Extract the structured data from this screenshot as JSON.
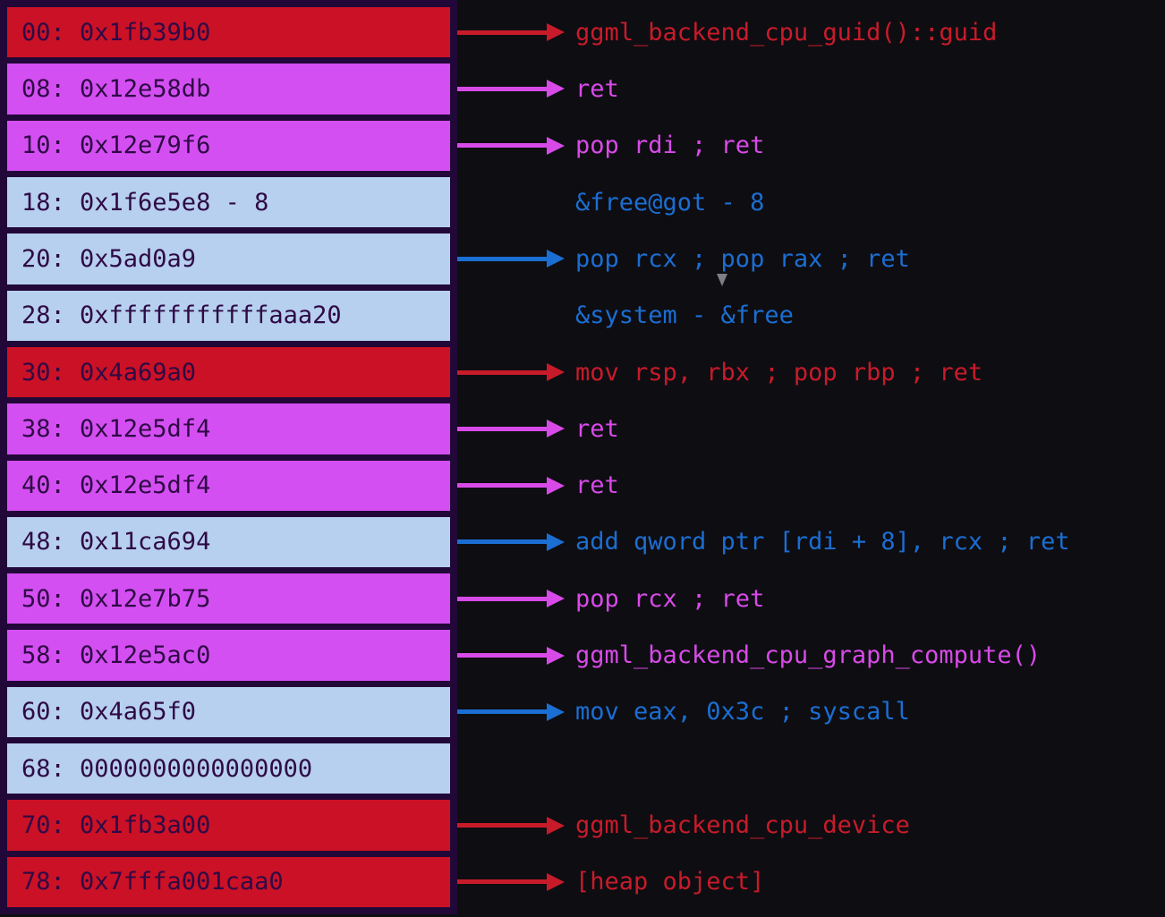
{
  "colors": {
    "background": "#0e0d12",
    "frame": "#220838",
    "cell_text": "#2e0a45",
    "red": "#cb1126",
    "magenta": "#d44ff2",
    "blue_fill": "#b7d0f0",
    "red_label": "#c81b2a",
    "magenta_label": "#d84ae8",
    "blue_label": "#1b6ed2",
    "cursor": "#7e7e86"
  },
  "cursor_icon": "mouse-cursor-icon",
  "rows": [
    {
      "cell": "00: 0x1fb39b0",
      "type": "red",
      "arrow": true,
      "label": "ggml_backend_cpu_guid()::guid"
    },
    {
      "cell": "08: 0x12e58db",
      "type": "magenta",
      "arrow": true,
      "label": "ret"
    },
    {
      "cell": "10: 0x12e79f6",
      "type": "magenta",
      "arrow": true,
      "label": "pop rdi ; ret"
    },
    {
      "cell": "18: 0x1f6e5e8 - 8",
      "type": "blue",
      "arrow": false,
      "label": "&free@got - 8"
    },
    {
      "cell": "20: 0x5ad0a9",
      "type": "blue",
      "arrow": true,
      "label": "pop rcx ; pop rax ; ret"
    },
    {
      "cell": "28: 0xfffffffffffaaa20",
      "type": "blue",
      "arrow": false,
      "label": "&system - &free"
    },
    {
      "cell": "30: 0x4a69a0",
      "type": "red",
      "arrow": true,
      "label": "mov rsp, rbx ; pop rbp ; ret"
    },
    {
      "cell": "38: 0x12e5df4",
      "type": "magenta",
      "arrow": true,
      "label": "ret"
    },
    {
      "cell": "40: 0x12e5df4",
      "type": "magenta",
      "arrow": true,
      "label": "ret"
    },
    {
      "cell": "48: 0x11ca694",
      "type": "blue",
      "arrow": true,
      "label": "add qword ptr [rdi + 8], rcx ; ret"
    },
    {
      "cell": "50: 0x12e7b75",
      "type": "magenta",
      "arrow": true,
      "label": "pop rcx ; ret"
    },
    {
      "cell": "58: 0x12e5ac0",
      "type": "magenta",
      "arrow": true,
      "label": "ggml_backend_cpu_graph_compute()"
    },
    {
      "cell": "60: 0x4a65f0",
      "type": "blue",
      "arrow": true,
      "label": "mov eax, 0x3c ; syscall"
    },
    {
      "cell": "68: 0000000000000000",
      "type": "blue",
      "arrow": false,
      "label": ""
    },
    {
      "cell": "70: 0x1fb3a00",
      "type": "red",
      "arrow": true,
      "label": "ggml_backend_cpu_device"
    },
    {
      "cell": "78: 0x7fffa001caa0",
      "type": "red",
      "arrow": true,
      "label": "[heap object]"
    }
  ]
}
